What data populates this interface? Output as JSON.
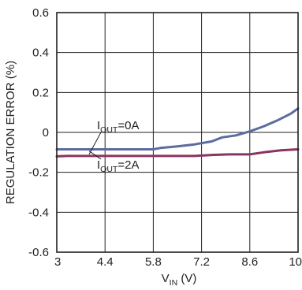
{
  "chart_data": {
    "type": "line",
    "xlabel": {
      "main": "V",
      "sub": "IN",
      "rest": " (V)"
    },
    "ylabel": "REGULATION ERROR (%)",
    "xlim": [
      3,
      10
    ],
    "ylim": [
      -0.6,
      0.6
    ],
    "grid": true,
    "x_ticks": [
      3,
      4.4,
      5.8,
      7.2,
      8.6,
      10
    ],
    "x_tick_labels": [
      "3",
      "4.4",
      "5.8",
      "7.2",
      "8.6",
      "10"
    ],
    "y_ticks": [
      -0.6,
      -0.4,
      -0.2,
      0,
      0.2,
      0.4,
      0.6
    ],
    "y_tick_labels": [
      "-0.6",
      "-0.4",
      "-0.2",
      "0",
      "0.2",
      "0.4",
      "0.6"
    ],
    "series": [
      {
        "name": "IOUT=0A",
        "color": "#5c6c9e",
        "x": [
          3,
          3.5,
          4.0,
          4.5,
          5.0,
          5.5,
          5.8,
          6.0,
          6.5,
          7.0,
          7.5,
          7.8,
          8.2,
          8.6,
          9.0,
          9.4,
          9.8,
          10
        ],
        "y": [
          -0.085,
          -0.085,
          -0.085,
          -0.085,
          -0.085,
          -0.085,
          -0.085,
          -0.078,
          -0.07,
          -0.06,
          -0.045,
          -0.025,
          -0.015,
          0.005,
          0.03,
          0.06,
          0.095,
          0.12
        ]
      },
      {
        "name": "IOUT=2A",
        "color": "#8a3461",
        "x": [
          3,
          3.3,
          4.0,
          5.0,
          6.0,
          7.0,
          7.5,
          8.0,
          8.6,
          9.0,
          9.5,
          10
        ],
        "y": [
          -0.12,
          -0.118,
          -0.118,
          -0.118,
          -0.118,
          -0.118,
          -0.113,
          -0.11,
          -0.11,
          -0.1,
          -0.09,
          -0.085
        ]
      }
    ],
    "annotations": [
      {
        "main": "I",
        "sub": "OUT",
        "rest": "=0A"
      },
      {
        "main": "I",
        "sub": "OUT",
        "rest": "=2A"
      }
    ]
  }
}
